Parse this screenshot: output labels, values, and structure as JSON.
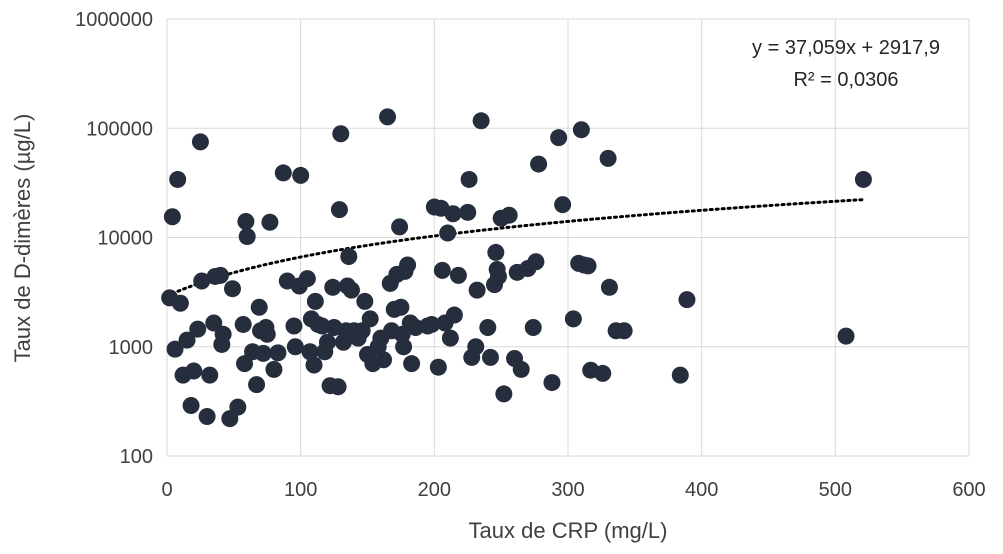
{
  "chart_data": {
    "type": "scatter",
    "title": "",
    "xlabel": "Taux de CRP (mg/L)",
    "ylabel": "Taux de D-dimères (µg/L)",
    "xlim": [
      0,
      600
    ],
    "ylim": [
      100,
      1000000
    ],
    "yscale": "log",
    "xticks": [
      0,
      100,
      200,
      300,
      400,
      500,
      600
    ],
    "xtick_labels": [
      "0",
      "100",
      "200",
      "300",
      "400",
      "500",
      "600"
    ],
    "yticks": [
      100,
      1000,
      10000,
      100000,
      1000000
    ],
    "ytick_labels": [
      "100",
      "1000",
      "10000",
      "100000",
      "1000000"
    ],
    "grid": true,
    "marker_color": "#262d3d",
    "trendline": {
      "type": "linear",
      "slope": 37.059,
      "intercept": 2917.9,
      "x_range": [
        0,
        521
      ],
      "style": "dotted",
      "color": "#000000",
      "equation_label": "y = 37,059x + 2917,9",
      "r2_label": "R² = 0,0306"
    },
    "points": [
      [
        2,
        2800
      ],
      [
        4,
        15500
      ],
      [
        6,
        950
      ],
      [
        8,
        34000
      ],
      [
        10,
        2500
      ],
      [
        12,
        550
      ],
      [
        15,
        1150
      ],
      [
        18,
        290
      ],
      [
        20,
        600
      ],
      [
        23,
        1450
      ],
      [
        25,
        75000
      ],
      [
        26,
        4000
      ],
      [
        30,
        230
      ],
      [
        32,
        550
      ],
      [
        35,
        1650
      ],
      [
        36,
        4400
      ],
      [
        40,
        4500
      ],
      [
        41,
        1050
      ],
      [
        42,
        1300
      ],
      [
        47,
        220
      ],
      [
        49,
        3400
      ],
      [
        53,
        280
      ],
      [
        57,
        1600
      ],
      [
        58,
        700
      ],
      [
        59,
        14000
      ],
      [
        60,
        10200
      ],
      [
        64,
        900
      ],
      [
        67,
        450
      ],
      [
        69,
        2300
      ],
      [
        70,
        1400
      ],
      [
        72,
        870
      ],
      [
        74,
        1500
      ],
      [
        75,
        1300
      ],
      [
        77,
        13800
      ],
      [
        80,
        620
      ],
      [
        83,
        880
      ],
      [
        87,
        39000
      ],
      [
        90,
        4000
      ],
      [
        95,
        1550
      ],
      [
        96,
        1000
      ],
      [
        99,
        3600
      ],
      [
        100,
        37000
      ],
      [
        105,
        4200
      ],
      [
        107,
        900
      ],
      [
        108,
        1800
      ],
      [
        110,
        680
      ],
      [
        111,
        2600
      ],
      [
        113,
        1600
      ],
      [
        116,
        1550
      ],
      [
        118,
        900
      ],
      [
        120,
        1100
      ],
      [
        122,
        440
      ],
      [
        124,
        3500
      ],
      [
        125,
        1500
      ],
      [
        128,
        430
      ],
      [
        129,
        18000
      ],
      [
        130,
        89000
      ],
      [
        132,
        1100
      ],
      [
        134,
        1400
      ],
      [
        135,
        3600
      ],
      [
        136,
        6700
      ],
      [
        138,
        3300
      ],
      [
        140,
        1400
      ],
      [
        143,
        1200
      ],
      [
        146,
        1400
      ],
      [
        148,
        2600
      ],
      [
        150,
        850
      ],
      [
        152,
        1800
      ],
      [
        154,
        700
      ],
      [
        158,
        1000
      ],
      [
        160,
        1200
      ],
      [
        162,
        760
      ],
      [
        165,
        127000
      ],
      [
        167,
        3800
      ],
      [
        168,
        1400
      ],
      [
        170,
        2200
      ],
      [
        172,
        4600
      ],
      [
        174,
        12500
      ],
      [
        175,
        2300
      ],
      [
        176,
        1300
      ],
      [
        177,
        1000
      ],
      [
        178,
        4900
      ],
      [
        180,
        5600
      ],
      [
        182,
        1650
      ],
      [
        183,
        700
      ],
      [
        186,
        1500
      ],
      [
        195,
        1550
      ],
      [
        198,
        1600
      ],
      [
        200,
        19000
      ],
      [
        203,
        650
      ],
      [
        205,
        18500
      ],
      [
        206,
        5000
      ],
      [
        208,
        1650
      ],
      [
        210,
        11000
      ],
      [
        212,
        1200
      ],
      [
        214,
        16500
      ],
      [
        215,
        1950
      ],
      [
        218,
        4500
      ],
      [
        225,
        17000
      ],
      [
        226,
        34000
      ],
      [
        228,
        800
      ],
      [
        231,
        1000
      ],
      [
        232,
        3300
      ],
      [
        235,
        117000
      ],
      [
        240,
        1500
      ],
      [
        242,
        800
      ],
      [
        245,
        3700
      ],
      [
        246,
        7300
      ],
      [
        247,
        5100
      ],
      [
        248,
        4400
      ],
      [
        250,
        15000
      ],
      [
        252,
        370
      ],
      [
        256,
        16000
      ],
      [
        260,
        780
      ],
      [
        262,
        4800
      ],
      [
        265,
        620
      ],
      [
        270,
        5200
      ],
      [
        274,
        1500
      ],
      [
        276,
        6000
      ],
      [
        278,
        47000
      ],
      [
        288,
        470
      ],
      [
        293,
        82000
      ],
      [
        296,
        20000
      ],
      [
        304,
        1800
      ],
      [
        308,
        5800
      ],
      [
        310,
        97000
      ],
      [
        312,
        5600
      ],
      [
        315,
        5500
      ],
      [
        317,
        610
      ],
      [
        326,
        570
      ],
      [
        330,
        53000
      ],
      [
        331,
        3500
      ],
      [
        336,
        1400
      ],
      [
        342,
        1400
      ],
      [
        384,
        550
      ],
      [
        389,
        2700
      ],
      [
        508,
        1250
      ],
      [
        521,
        34000
      ]
    ]
  }
}
